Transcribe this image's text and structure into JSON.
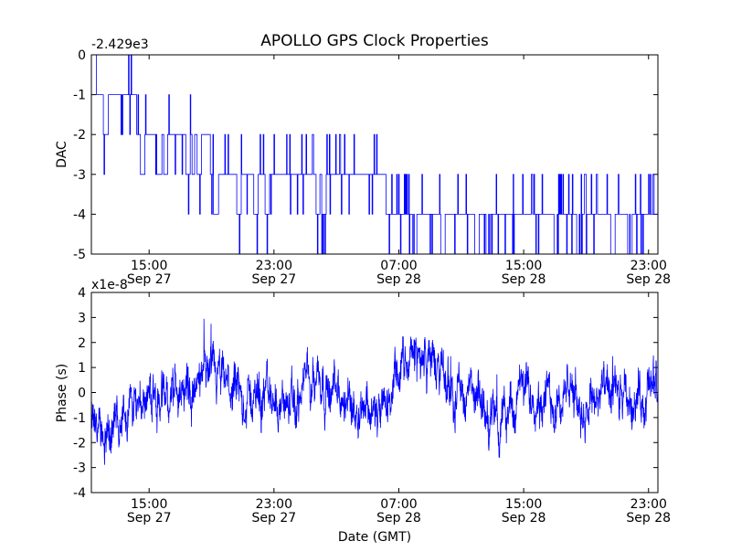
{
  "chart_data": {
    "type": "line",
    "title": "APOLLO GPS Clock Properties",
    "line_color": "#0000ff",
    "time_range_hours": [
      11.3,
      23.6,
      1
    ],
    "x_ticks": [
      {
        "time": "15:00",
        "date": "Sep 27",
        "hour": 15,
        "day": 0
      },
      {
        "time": "23:00",
        "date": "Sep 27",
        "hour": 23,
        "day": 0
      },
      {
        "time": "07:00",
        "date": "Sep 28",
        "hour": 7,
        "day": 1
      },
      {
        "time": "15:00",
        "date": "Sep 28",
        "hour": 15,
        "day": 1
      },
      {
        "time": "23:00",
        "date": "Sep 28",
        "hour": 23,
        "day": 1
      }
    ],
    "panels": [
      {
        "id": "dac",
        "ylabel": "DAC",
        "offset_label": "-2.429e3",
        "ylim": [
          -5,
          0
        ],
        "yticks": [
          "0",
          "-1",
          "-2",
          "-3",
          "-4",
          "-5"
        ],
        "ytick_values": [
          0,
          -1,
          -2,
          -3,
          -4,
          -5
        ],
        "levels": [
          {
            "start": 0.0,
            "value": -1,
            "spikes": [
              0.025
            ]
          },
          {
            "start": 0.08,
            "value": -2,
            "spikes": [
              0.09,
              0.12,
              0.13,
              0.17,
              0.19
            ]
          },
          {
            "start": 0.21,
            "value": -3,
            "spikes": [
              0.22,
              0.26,
              0.29,
              0.31,
              0.42,
              0.45
            ]
          },
          {
            "start": 0.37,
            "value": -3,
            "spikes": [
              0.4,
              0.41
            ]
          },
          {
            "start": 0.52,
            "value": -4,
            "spikes": [
              0.57,
              0.62,
              0.68,
              0.7,
              0.82,
              0.86,
              0.92,
              0.95
            ]
          }
        ]
      },
      {
        "id": "phase",
        "ylabel": "Phase (s)",
        "xlabel": "Date (GMT)",
        "offset_label": "x1e-8",
        "ylim": [
          -4,
          4
        ],
        "yticks": [
          "4",
          "3",
          "2",
          "1",
          "0",
          "-1",
          "-2",
          "-3",
          "-4"
        ],
        "ytick_values": [
          4,
          3,
          2,
          1,
          0,
          -1,
          -2,
          -3,
          -4
        ],
        "trend": [
          [
            0.0,
            -1.2
          ],
          [
            0.03,
            -1.6
          ],
          [
            0.06,
            -0.8
          ],
          [
            0.09,
            0.0
          ],
          [
            0.12,
            -0.3
          ],
          [
            0.15,
            0.1
          ],
          [
            0.18,
            0.0
          ],
          [
            0.21,
            0.6
          ],
          [
            0.24,
            0.2
          ],
          [
            0.27,
            -0.4
          ],
          [
            0.3,
            0.0
          ],
          [
            0.33,
            -0.3
          ],
          [
            0.36,
            -0.7
          ],
          [
            0.39,
            1.1
          ],
          [
            0.42,
            0.2
          ],
          [
            0.45,
            -0.6
          ],
          [
            0.48,
            -0.1
          ],
          [
            0.51,
            -1.2
          ],
          [
            0.54,
            0.6
          ],
          [
            0.57,
            1.5
          ],
          [
            0.6,
            1.3
          ],
          [
            0.63,
            0.3
          ],
          [
            0.66,
            0.0
          ],
          [
            0.69,
            -0.6
          ],
          [
            0.72,
            -1.4
          ],
          [
            0.75,
            -0.2
          ],
          [
            0.78,
            0.2
          ],
          [
            0.81,
            -0.4
          ],
          [
            0.84,
            0.0
          ],
          [
            0.87,
            -0.5
          ],
          [
            0.9,
            0.1
          ],
          [
            0.93,
            -0.5
          ],
          [
            0.96,
            -0.3
          ],
          [
            1.0,
            0.2
          ]
        ]
      }
    ]
  }
}
